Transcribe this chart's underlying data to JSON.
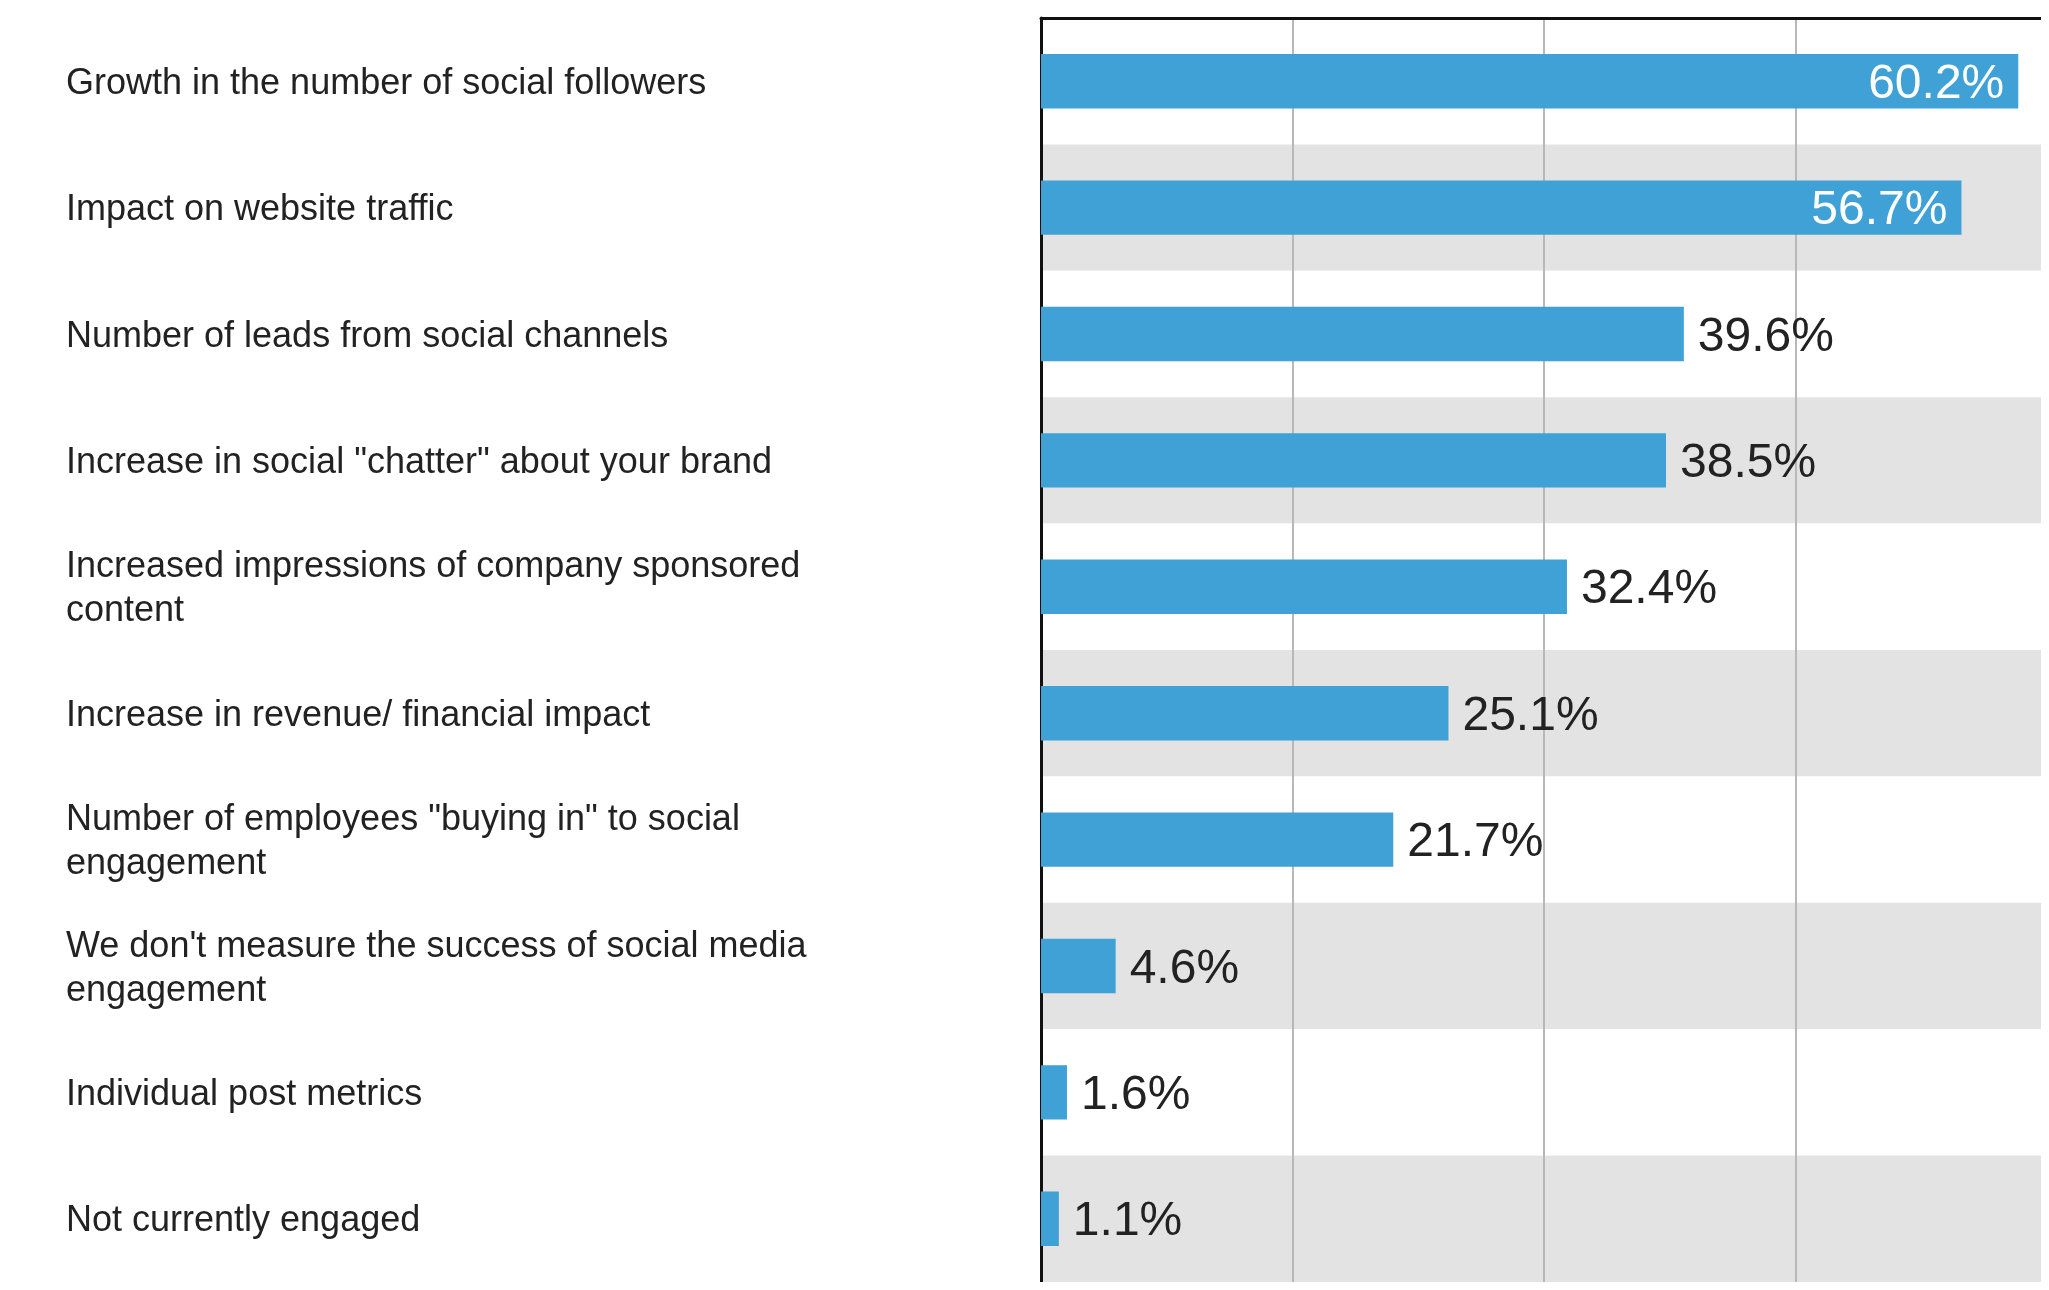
{
  "chart_data": {
    "type": "bar",
    "orientation": "horizontal",
    "categories": [
      "Growth in the number of social followers",
      "Impact on website traffic",
      "Number of leads from social channels",
      "Increase in social \"chatter\" about your brand",
      "Increased impressions of company sponsored content",
      "Increase in revenue/ financial impact",
      "Number of employees \"buying in\" to social engagement",
      "We don't measure the success of social media engagement",
      "Individual post metrics",
      "Not currently engaged"
    ],
    "values": [
      60.2,
      56.7,
      39.6,
      38.5,
      32.4,
      25.1,
      21.7,
      4.6,
      1.6,
      1.1
    ],
    "value_labels": [
      "60.2%",
      "56.7%",
      "39.6%",
      "38.5%",
      "32.4%",
      "25.1%",
      "21.7%",
      "4.6%",
      "1.6%",
      "1.1%"
    ],
    "color": "#3fa1d6",
    "xlim": [
      0,
      61.6
    ],
    "xticks": [
      {
        "value": 15.5,
        "label": null
      },
      {
        "value": 31,
        "label": null
      },
      {
        "value": 46.5,
        "label": null
      }
    ],
    "grid": "x",
    "tick_labels": "y"
  }
}
